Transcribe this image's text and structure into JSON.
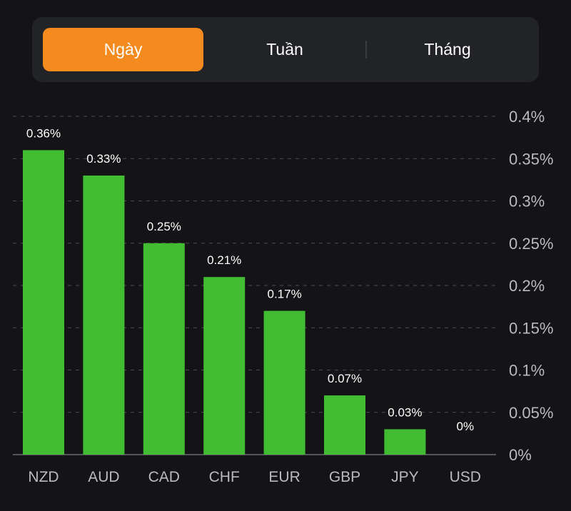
{
  "tabs": [
    {
      "label": "Ngày",
      "active": true
    },
    {
      "label": "Tuần",
      "active": false
    },
    {
      "label": "Tháng",
      "active": false
    }
  ],
  "colors": {
    "background": "#141417",
    "bar": "#42bd33",
    "active_tab": "#f58a1f",
    "tab_bar": "#222327",
    "grid": "#4a4b50",
    "axis_text": "#b9b9bf"
  },
  "chart_data": {
    "type": "bar",
    "categories": [
      "NZD",
      "AUD",
      "CAD",
      "CHF",
      "EUR",
      "GBP",
      "JPY",
      "USD"
    ],
    "values": [
      0.36,
      0.33,
      0.25,
      0.21,
      0.17,
      0.07,
      0.03,
      0
    ],
    "value_labels": [
      "0.36%",
      "0.33%",
      "0.25%",
      "0.21%",
      "0.17%",
      "0.07%",
      "0.03%",
      "0%"
    ],
    "y_ticks": [
      0,
      0.05,
      0.1,
      0.15,
      0.2,
      0.25,
      0.3,
      0.35,
      0.4
    ],
    "y_tick_labels": [
      "0%",
      "0.05%",
      "0.1%",
      "0.15%",
      "0.2%",
      "0.25%",
      "0.3%",
      "0.35%",
      "0.4%"
    ],
    "ylim": [
      0,
      0.4
    ],
    "y_axis_position": "right",
    "grid": true,
    "title": "",
    "xlabel": "",
    "ylabel": ""
  }
}
